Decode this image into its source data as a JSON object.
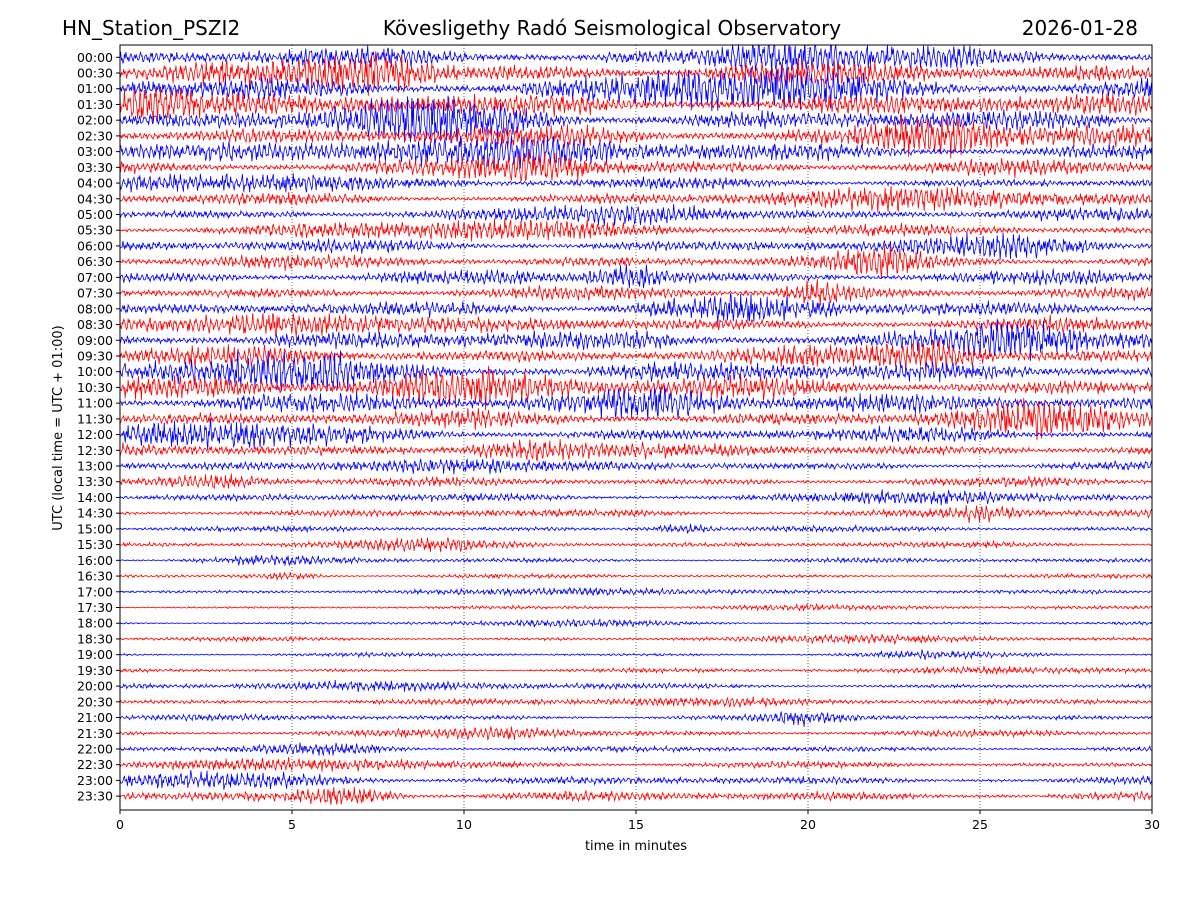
{
  "chart_data": {
    "type": "line",
    "title_left": "HN_Station_PSZI2",
    "title_center": "Kövesligethy Radó Seismological Observatory",
    "title_right": "2026-01-28",
    "xlabel": "time in minutes",
    "ylabel": "UTC (local time = UTC + 01:00)",
    "xlim": [
      0,
      30
    ],
    "x_ticks": [
      "0",
      "5",
      "10",
      "15",
      "20",
      "25",
      "30"
    ],
    "x_gridlines": [
      5,
      10,
      15,
      20,
      25
    ],
    "row_labels": [
      "00:00",
      "00:30",
      "01:00",
      "01:30",
      "02:00",
      "02:30",
      "03:00",
      "03:30",
      "04:00",
      "04:30",
      "05:00",
      "05:30",
      "06:00",
      "06:30",
      "07:00",
      "07:30",
      "08:00",
      "08:30",
      "09:00",
      "09:30",
      "10:00",
      "10:30",
      "11:00",
      "11:30",
      "12:00",
      "12:30",
      "13:00",
      "13:30",
      "14:00",
      "14:30",
      "15:00",
      "15:30",
      "16:00",
      "16:30",
      "17:00",
      "17:30",
      "18:00",
      "18:30",
      "19:00",
      "19:30",
      "20:00",
      "20:30",
      "21:00",
      "21:30",
      "22:00",
      "22:30",
      "23:00",
      "23:30"
    ],
    "row_colors": [
      "#0000ff",
      "#ff0000"
    ],
    "relative_amplitude": [
      2.2,
      2.6,
      2.5,
      2.4,
      2.3,
      2.3,
      1.9,
      1.7,
      1.2,
      1.3,
      1.3,
      1.2,
      1.4,
      1.5,
      1.5,
      1.4,
      1.5,
      1.6,
      2.2,
      2.0,
      2.3,
      2.2,
      2.0,
      1.8,
      1.6,
      1.5,
      1.0,
      0.95,
      0.9,
      0.9,
      0.6,
      0.65,
      0.55,
      0.45,
      0.45,
      0.35,
      0.35,
      0.45,
      0.4,
      0.45,
      0.6,
      0.6,
      0.7,
      0.7,
      0.65,
      0.7,
      0.9,
      1.1
    ]
  }
}
